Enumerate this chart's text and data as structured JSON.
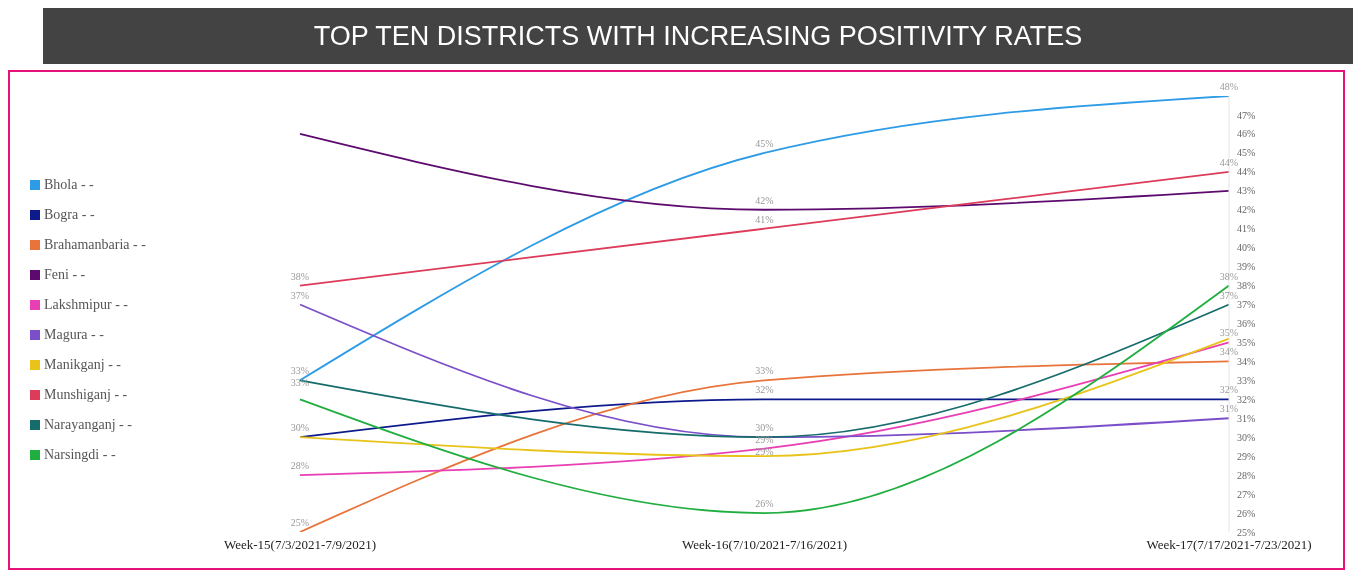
{
  "chart_data": {
    "type": "line",
    "title": "TOP TEN DISTRICTS WITH INCREASING POSITIVITY RATES",
    "categories": [
      "Week-15(7/3/2021-7/9/2021)",
      "Week-16(7/10/2021-7/16/2021)",
      "Week-17(7/17/2021-7/23/2021)"
    ],
    "series": [
      {
        "name": "Bhola - -",
        "color": "#2e9be6",
        "values": [
          33,
          45,
          48
        ],
        "value_labels": [
          "33%",
          "45%",
          "48%"
        ]
      },
      {
        "name": "Bogra - -",
        "color": "#0d1a8c",
        "values": [
          30,
          32,
          32
        ],
        "value_labels": [
          null,
          "32%",
          "32%"
        ]
      },
      {
        "name": "Brahamanbaria - -",
        "color": "#e8743b",
        "values": [
          25,
          33,
          34
        ],
        "value_labels": [
          "25%",
          "33%",
          "34%"
        ]
      },
      {
        "name": "Feni - -",
        "color": "#5c0a6e",
        "values": [
          46,
          42,
          43
        ],
        "value_labels": [
          null,
          "42%",
          null
        ]
      },
      {
        "name": "Lakshmipur - -",
        "color": "#e83fb5",
        "values": [
          28,
          29.4,
          35
        ],
        "value_labels": [
          "28%",
          "29%",
          "35%"
        ]
      },
      {
        "name": "Magura - -",
        "color": "#7b4fc9",
        "values": [
          37,
          30,
          31
        ],
        "value_labels": [
          "37%",
          null,
          "31%"
        ]
      },
      {
        "name": "Manikganj - -",
        "color": "#e8c41a",
        "values": [
          30,
          29,
          35.2
        ],
        "value_labels": [
          "30%",
          "29%",
          null
        ]
      },
      {
        "name": "Munshiganj - -",
        "color": "#dc3c5a",
        "values": [
          38,
          41,
          44
        ],
        "value_labels": [
          "38%",
          "41%",
          "44%"
        ]
      },
      {
        "name": "Narayanganj - -",
        "color": "#166b6b",
        "values": [
          33,
          30,
          37
        ],
        "value_labels": [
          "33%",
          "30%",
          "37%"
        ]
      },
      {
        "name": "Narsingdi - -",
        "color": "#1fae3f",
        "values": [
          32,
          26,
          38
        ],
        "value_labels": [
          null,
          "26%",
          "38%"
        ]
      }
    ],
    "ylim": [
      25,
      48
    ],
    "yticks": [
      {
        "value": 25,
        "label": "25%"
      },
      {
        "value": 26,
        "label": "26%"
      },
      {
        "value": 27,
        "label": "27%"
      },
      {
        "value": 28,
        "label": "28%"
      },
      {
        "value": 29,
        "label": "29%"
      },
      {
        "value": 30,
        "label": "30%"
      },
      {
        "value": 31,
        "label": "31%"
      },
      {
        "value": 32,
        "label": "32%"
      },
      {
        "value": 33,
        "label": "33%"
      },
      {
        "value": 34,
        "label": "34%"
      },
      {
        "value": 35,
        "label": "35%"
      },
      {
        "value": 36,
        "label": "36%"
      },
      {
        "value": 37,
        "label": "37%"
      },
      {
        "value": 38,
        "label": "38%"
      },
      {
        "value": 39,
        "label": "39%"
      },
      {
        "value": 40,
        "label": "40%"
      },
      {
        "value": 41,
        "label": "41%"
      },
      {
        "value": 42,
        "label": "42%"
      },
      {
        "value": 43,
        "label": "43%"
      },
      {
        "value": 44,
        "label": "44%"
      },
      {
        "value": 45,
        "label": "45%"
      },
      {
        "value": 46,
        "label": "46%"
      },
      {
        "value": 47,
        "label": "47%"
      }
    ],
    "grid": false,
    "legend": "left",
    "marker": "none",
    "line_style": "solid"
  }
}
